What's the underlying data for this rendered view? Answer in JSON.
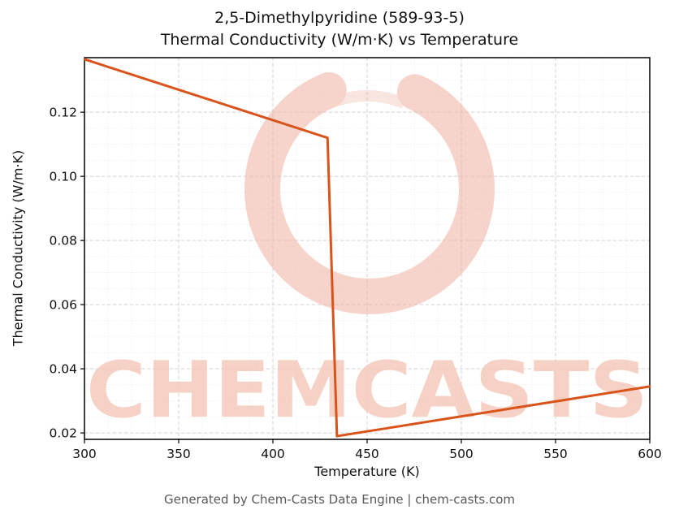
{
  "title_line1": "2,5-Dimethylpyridine (589-93-5)",
  "title_line2": "Thermal Conductivity (W/m·K) vs Temperature",
  "footer": "Generated by Chem-Casts Data Engine | chem-casts.com",
  "watermark": {
    "text": "CHEMCASTS",
    "text_color": "#f5c9bb",
    "ring_color": "#efb2a1"
  },
  "chart_data": {
    "type": "line",
    "title": "2,5-Dimethylpyridine (589-93-5) Thermal Conductivity (W/m·K) vs Temperature",
    "xlabel": "Temperature (K)",
    "ylabel": "Thermal Conductivity (W/m·K)",
    "xlim": [
      300,
      600
    ],
    "ylim": [
      0.018,
      0.137
    ],
    "xticks": [
      300,
      350,
      400,
      450,
      500,
      550,
      600
    ],
    "yticks": [
      0.02,
      0.04,
      0.06,
      0.08,
      0.1,
      0.12
    ],
    "x_minor_step": 12.5,
    "y_minor_step": 0.005,
    "grid": true,
    "legend": "none",
    "line_color": "#d9531b",
    "series": [
      {
        "name": "Thermal Conductivity",
        "x": [
          300,
          429,
          434,
          600
        ],
        "y": [
          0.1365,
          0.112,
          0.019,
          0.0345
        ]
      }
    ]
  }
}
